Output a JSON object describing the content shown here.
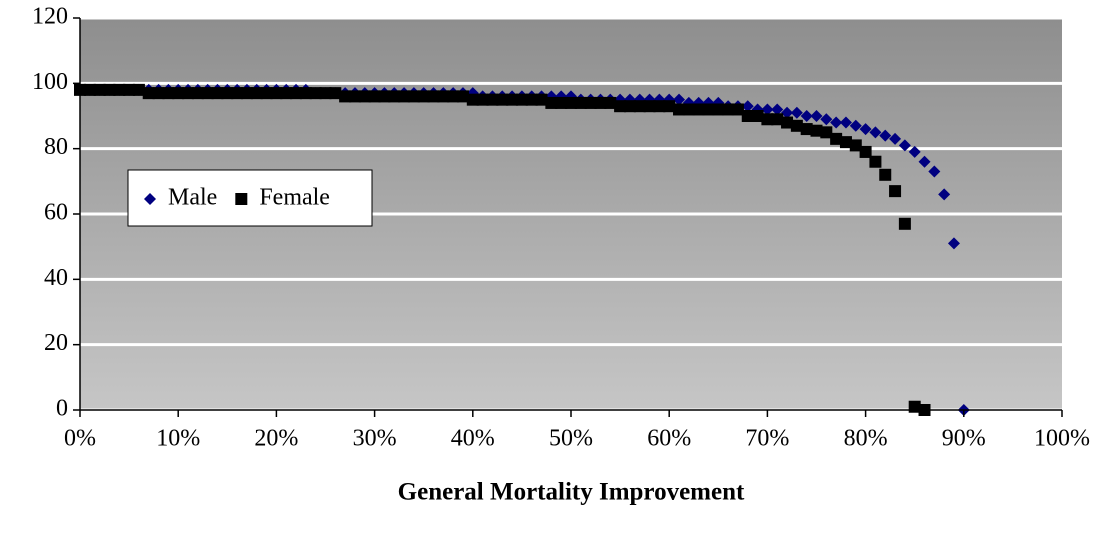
{
  "chart_data": {
    "type": "scatter",
    "xlabel": "General Mortality Improvement",
    "xlim": [
      0,
      100
    ],
    "xticks": [
      {
        "value": 0,
        "label": "0%"
      },
      {
        "value": 10,
        "label": "10%"
      },
      {
        "value": 20,
        "label": "20%"
      },
      {
        "value": 30,
        "label": "30%"
      },
      {
        "value": 40,
        "label": "40%"
      },
      {
        "value": 50,
        "label": "50%"
      },
      {
        "value": 60,
        "label": "60%"
      },
      {
        "value": 70,
        "label": "70%"
      },
      {
        "value": 80,
        "label": "80%"
      },
      {
        "value": 90,
        "label": "90%"
      },
      {
        "value": 100,
        "label": "100%"
      }
    ],
    "ylim": [
      0,
      120
    ],
    "yticks": [
      0,
      20,
      40,
      60,
      80,
      100,
      120
    ],
    "grid": true,
    "series": [
      {
        "name": "Male",
        "color": "#000080",
        "marker": "diamond",
        "x": [
          0,
          1,
          2,
          3,
          4,
          5,
          6,
          7,
          8,
          9,
          10,
          11,
          12,
          13,
          14,
          15,
          16,
          17,
          18,
          19,
          20,
          21,
          22,
          23,
          24,
          25,
          26,
          27,
          28,
          29,
          30,
          31,
          32,
          33,
          34,
          35,
          36,
          37,
          38,
          39,
          40,
          41,
          42,
          43,
          44,
          45,
          46,
          47,
          48,
          49,
          50,
          51,
          52,
          53,
          54,
          55,
          56,
          57,
          58,
          59,
          60,
          61,
          62,
          63,
          64,
          65,
          66,
          67,
          68,
          69,
          70,
          71,
          72,
          73,
          74,
          75,
          76,
          77,
          78,
          79,
          80,
          81,
          82,
          83,
          84,
          85,
          86,
          87,
          88,
          89,
          90
        ],
        "values": [
          98,
          98,
          98,
          98,
          98,
          98,
          98,
          98,
          98,
          98,
          98,
          98,
          98,
          98,
          98,
          98,
          98,
          98,
          98,
          98,
          98,
          98,
          98,
          98,
          97,
          97,
          97,
          97,
          97,
          97,
          97,
          97,
          97,
          97,
          97,
          97,
          97,
          97,
          97,
          97,
          97,
          96,
          96,
          96,
          96,
          96,
          96,
          96,
          96,
          96,
          96,
          95,
          95,
          95,
          95,
          95,
          95,
          95,
          95,
          95,
          95,
          95,
          94,
          94,
          94,
          94,
          93,
          93,
          93,
          92,
          92,
          92,
          91,
          91,
          90,
          90,
          89,
          88,
          88,
          87,
          86,
          85,
          84,
          83,
          81,
          79,
          76,
          73,
          66,
          51,
          0
        ]
      },
      {
        "name": "Female",
        "color": "#000000",
        "marker": "square",
        "x": [
          0,
          1,
          2,
          3,
          4,
          5,
          6,
          7,
          8,
          9,
          10,
          11,
          12,
          13,
          14,
          15,
          16,
          17,
          18,
          19,
          20,
          21,
          22,
          23,
          24,
          25,
          26,
          27,
          28,
          29,
          30,
          31,
          32,
          33,
          34,
          35,
          36,
          37,
          38,
          39,
          40,
          41,
          42,
          43,
          44,
          45,
          46,
          47,
          48,
          49,
          50,
          51,
          52,
          53,
          54,
          55,
          56,
          57,
          58,
          59,
          60,
          61,
          62,
          63,
          64,
          65,
          66,
          67,
          68,
          69,
          70,
          71,
          72,
          73,
          74,
          75,
          76,
          77,
          78,
          79,
          80,
          81,
          82,
          83,
          84,
          85,
          86
        ],
        "values": [
          98,
          98,
          98,
          98,
          98,
          98,
          98,
          97,
          97,
          97,
          97,
          97,
          97,
          97,
          97,
          97,
          97,
          97,
          97,
          97,
          97,
          97,
          97,
          97,
          97,
          97,
          97,
          96,
          96,
          96,
          96,
          96,
          96,
          96,
          96,
          96,
          96,
          96,
          96,
          96,
          95,
          95,
          95,
          95,
          95,
          95,
          95,
          95,
          94,
          94,
          94,
          94,
          94,
          94,
          94,
          93,
          93,
          93,
          93,
          93,
          93,
          92,
          92,
          92,
          92,
          92,
          92,
          92,
          90,
          90,
          89,
          89,
          88,
          87,
          86,
          85.5,
          85,
          83,
          82,
          81,
          79,
          76,
          72,
          67,
          57,
          1,
          0
        ]
      }
    ]
  }
}
